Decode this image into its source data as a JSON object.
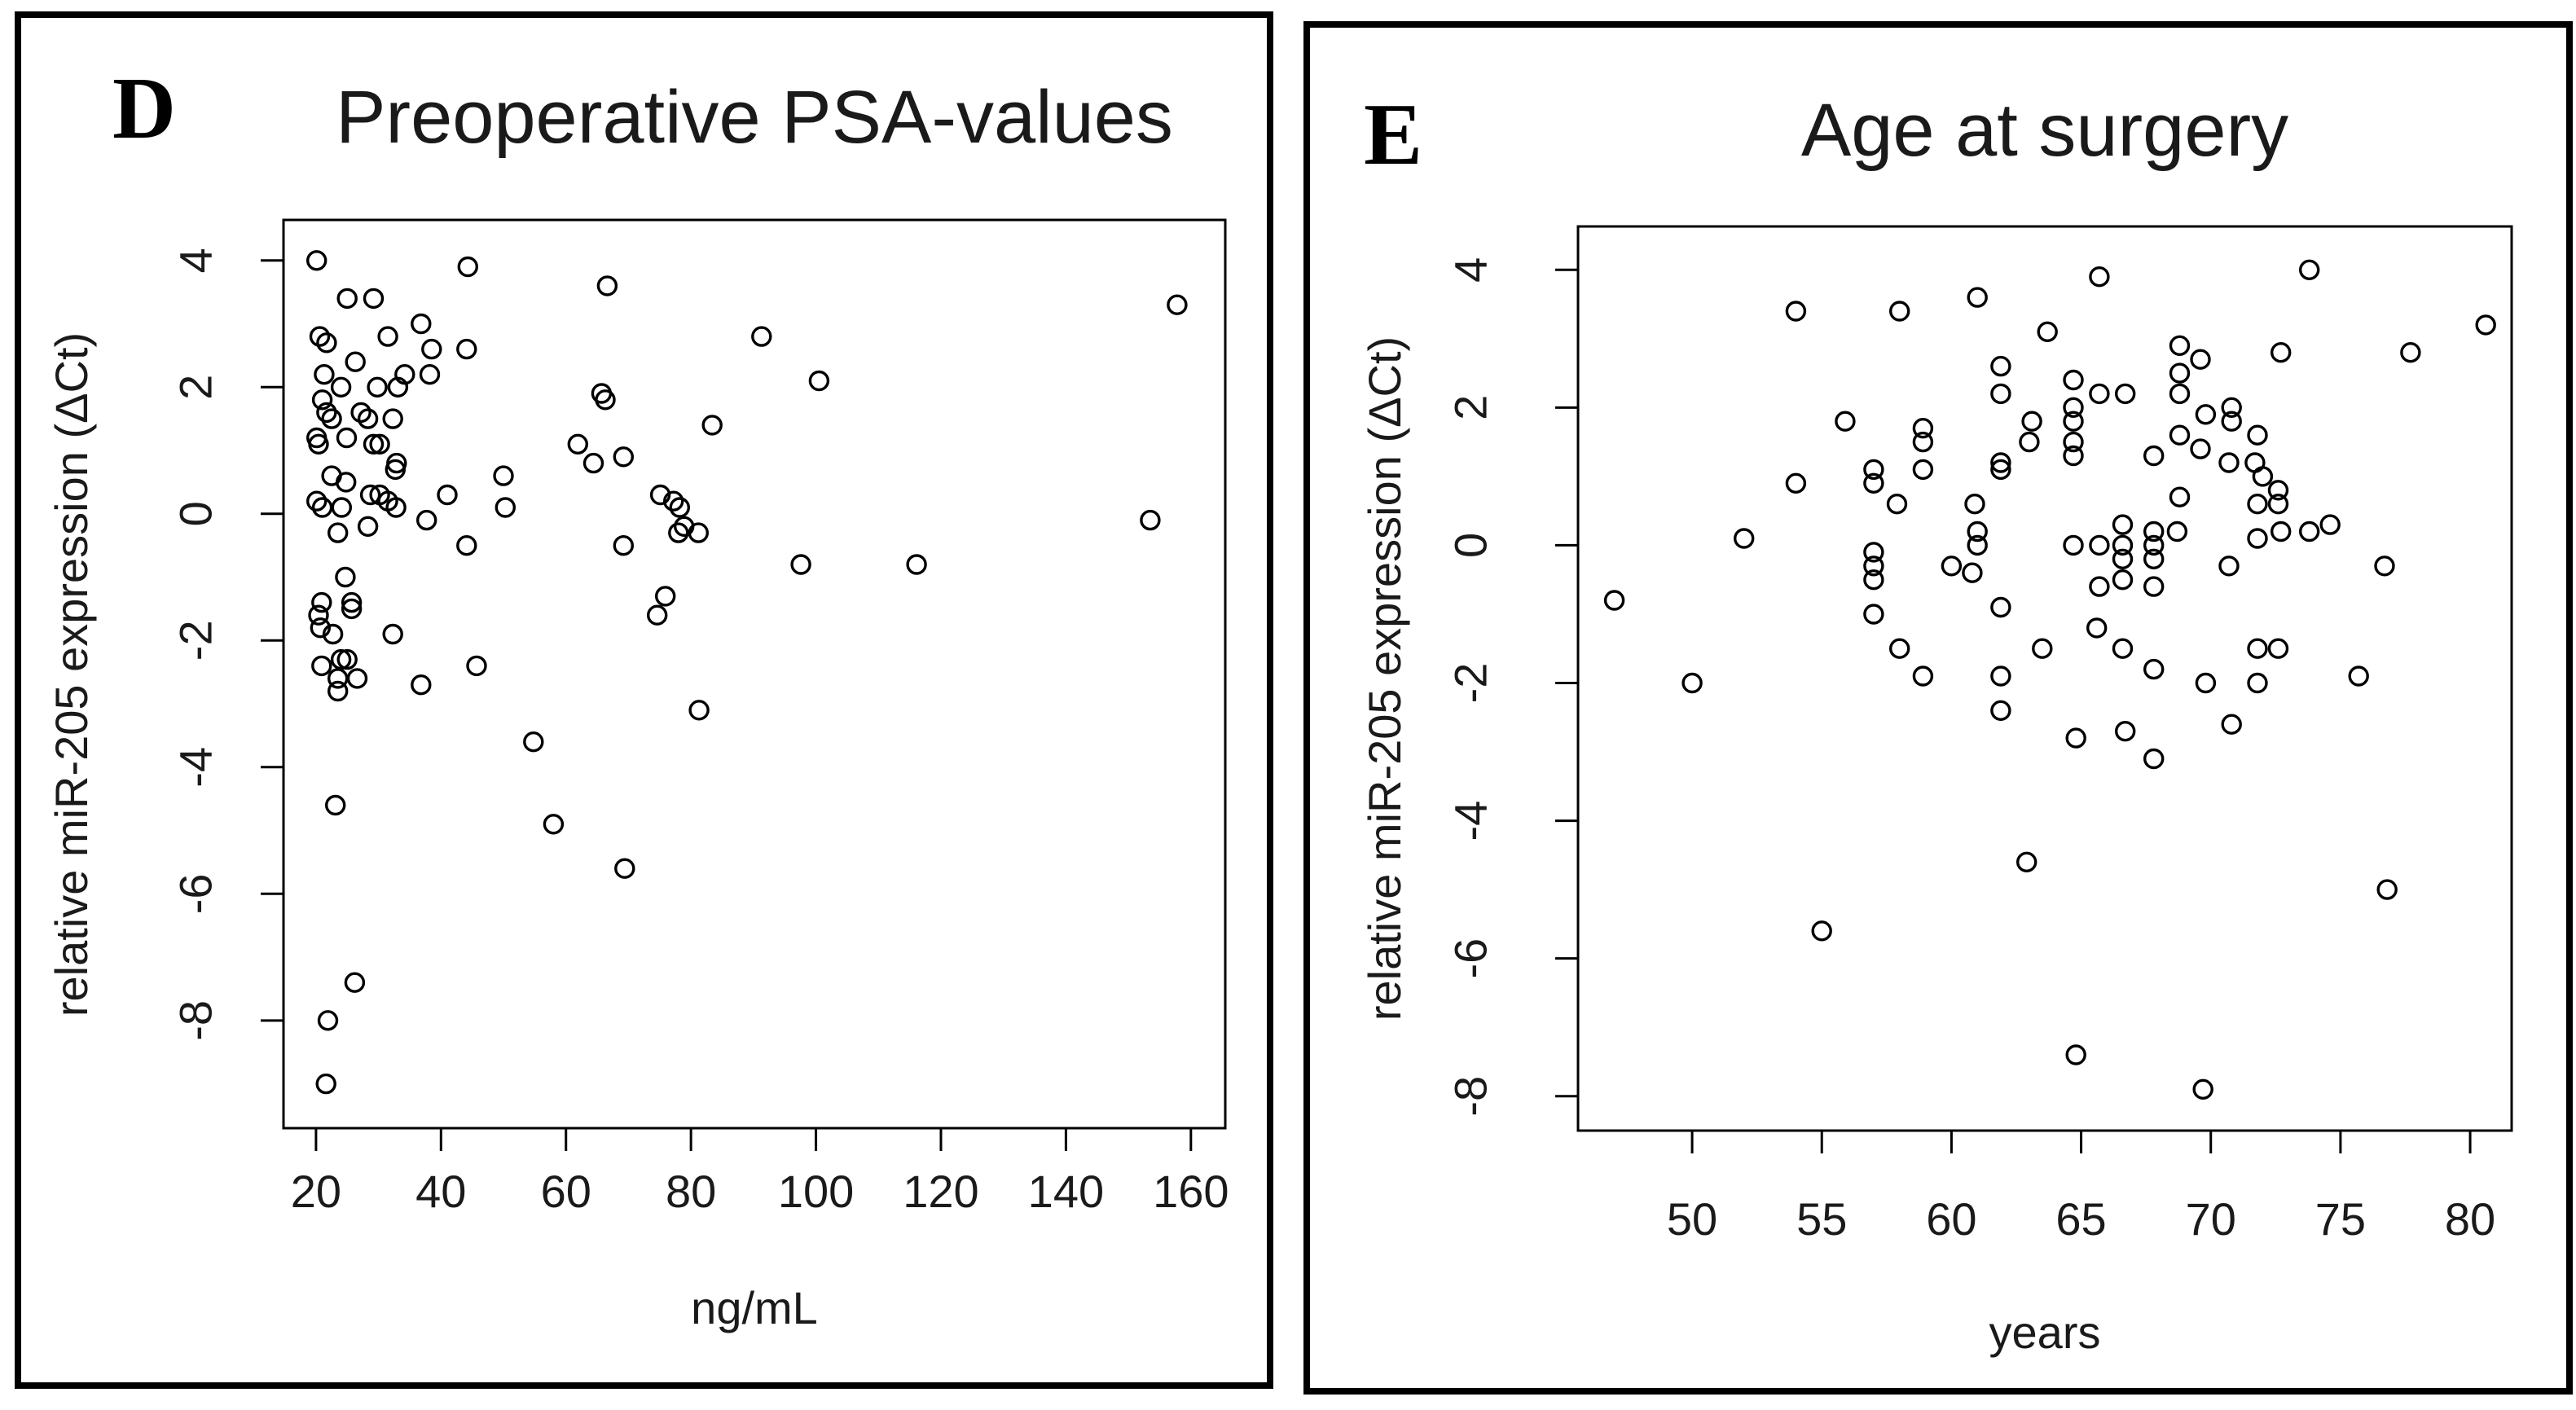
{
  "colors": {
    "foreground": "#000000",
    "background": "#ffffff"
  },
  "chart_data": [
    {
      "type": "scatter",
      "panel_letter": "D",
      "title": "Preoperative PSA-values",
      "xlabel": "ng/mL",
      "ylabel": "relative miR-205 expression (ΔCt)",
      "xlim": [
        14.8,
        165.5
      ],
      "ylim": [
        -9.7,
        4.64
      ],
      "xticks": [
        20,
        40,
        60,
        80,
        100,
        120,
        140,
        160
      ],
      "yticks": [
        4,
        2,
        0,
        -2,
        -4,
        -6,
        -8
      ],
      "grid": false,
      "legend": null,
      "marker": "open-circle",
      "points": [
        [
          20.1,
          4.0
        ],
        [
          44.3,
          3.9
        ],
        [
          66.6,
          3.6
        ],
        [
          25,
          3.4
        ],
        [
          29.2,
          3.4
        ],
        [
          36.8,
          3.0
        ],
        [
          31.5,
          2.8
        ],
        [
          20.6,
          2.8
        ],
        [
          21.7,
          2.7
        ],
        [
          91.3,
          2.8
        ],
        [
          38.5,
          2.6
        ],
        [
          44.1,
          2.6
        ],
        [
          26.3,
          2.4
        ],
        [
          21.3,
          2.2
        ],
        [
          24,
          2.0
        ],
        [
          34.2,
          2.2
        ],
        [
          33.1,
          2.0
        ],
        [
          29.8,
          2.0
        ],
        [
          38.2,
          2.2
        ],
        [
          65.7,
          1.9
        ],
        [
          66.3,
          1.8
        ],
        [
          21,
          1.8
        ],
        [
          21.7,
          1.6
        ],
        [
          22.5,
          1.5
        ],
        [
          27.2,
          1.6
        ],
        [
          28.3,
          1.5
        ],
        [
          32.3,
          1.5
        ],
        [
          20.1,
          1.2
        ],
        [
          20.4,
          1.1
        ],
        [
          24.9,
          1.2
        ],
        [
          29.2,
          1.1
        ],
        [
          30.2,
          1.1
        ],
        [
          32.9,
          0.8
        ],
        [
          32.7,
          0.7
        ],
        [
          61.9,
          1.1
        ],
        [
          64.4,
          0.8
        ],
        [
          69.2,
          0.9
        ],
        [
          83.4,
          1.4
        ],
        [
          22.5,
          0.6
        ],
        [
          24.8,
          0.5
        ],
        [
          20.1,
          0.2
        ],
        [
          21,
          0.1
        ],
        [
          24.1,
          0.1
        ],
        [
          28.7,
          0.3
        ],
        [
          30.2,
          0.3
        ],
        [
          31.5,
          0.2
        ],
        [
          32.8,
          0.1
        ],
        [
          28.3,
          -0.2
        ],
        [
          23.5,
          -0.3
        ],
        [
          37.7,
          -0.1
        ],
        [
          41,
          0.3
        ],
        [
          44.1,
          -0.5
        ],
        [
          50,
          0.6
        ],
        [
          50.3,
          0.1
        ],
        [
          75.1,
          0.3
        ],
        [
          77.2,
          0.2
        ],
        [
          78.2,
          0.1
        ],
        [
          78.9,
          -0.2
        ],
        [
          78,
          -0.3
        ],
        [
          81.2,
          -0.3
        ],
        [
          69.2,
          -0.5
        ],
        [
          24.7,
          -1.0
        ],
        [
          20.9,
          -1.4
        ],
        [
          25.7,
          -1.4
        ],
        [
          25.7,
          -1.5
        ],
        [
          20.4,
          -1.6
        ],
        [
          20.7,
          -1.8
        ],
        [
          22.7,
          -1.9
        ],
        [
          32.3,
          -1.9
        ],
        [
          75.9,
          -1.3
        ],
        [
          74.6,
          -1.6
        ],
        [
          20.9,
          -2.4
        ],
        [
          24,
          -2.3
        ],
        [
          25,
          -2.3
        ],
        [
          45.7,
          -2.4
        ],
        [
          23.5,
          -2.6
        ],
        [
          26.6,
          -2.6
        ],
        [
          36.8,
          -2.7
        ],
        [
          23.5,
          -2.8
        ],
        [
          81.3,
          -3.1
        ],
        [
          54.8,
          -3.6
        ],
        [
          23.1,
          -4.6
        ],
        [
          58,
          -4.9
        ],
        [
          69.4,
          -5.6
        ],
        [
          26.2,
          -7.4
        ],
        [
          21.9,
          -8.0
        ],
        [
          21.6,
          -9.0
        ],
        [
          157.8,
          3.3
        ],
        [
          100.5,
          2.1
        ],
        [
          153.5,
          -0.1
        ],
        [
          97.6,
          -0.8
        ],
        [
          116.1,
          -0.8
        ]
      ]
    },
    {
      "type": "scatter",
      "panel_letter": "E",
      "title": "Age at surgery",
      "xlabel": "years",
      "ylabel": "relative miR-205 expression (ΔCt)",
      "xlim": [
        45.6,
        81.6
      ],
      "ylim": [
        -8.5,
        4.63
      ],
      "xticks": [
        50,
        55,
        60,
        65,
        70,
        75,
        80
      ],
      "yticks": [
        4,
        2,
        0,
        -2,
        -4,
        -6,
        -8
      ],
      "grid": false,
      "legend": null,
      "marker": "open-circle",
      "points": [
        [
          54,
          3.4
        ],
        [
          58,
          3.4
        ],
        [
          61,
          3.6
        ],
        [
          63.7,
          3.1
        ],
        [
          61.9,
          2.6
        ],
        [
          61.9,
          2.2
        ],
        [
          55.9,
          1.8
        ],
        [
          58.9,
          1.7
        ],
        [
          58.9,
          1.5
        ],
        [
          58.9,
          1.1
        ],
        [
          57,
          1.1
        ],
        [
          57,
          0.9
        ],
        [
          54,
          0.9
        ],
        [
          57.9,
          0.6
        ],
        [
          60.9,
          0.6
        ],
        [
          63.1,
          1.8
        ],
        [
          63,
          1.5
        ],
        [
          61.9,
          1.2
        ],
        [
          61.9,
          1.1
        ],
        [
          61,
          0.2
        ],
        [
          61,
          0.0
        ],
        [
          60,
          -0.3
        ],
        [
          60.8,
          -0.4
        ],
        [
          52,
          0.1
        ],
        [
          47,
          -0.8
        ],
        [
          57,
          -0.1
        ],
        [
          57,
          -0.3
        ],
        [
          57,
          -0.5
        ],
        [
          61.9,
          -0.9
        ],
        [
          57,
          -1.0
        ],
        [
          58,
          -1.5
        ],
        [
          58.9,
          -1.9
        ],
        [
          50,
          -2.0
        ],
        [
          65.7,
          3.9
        ],
        [
          73.8,
          4.0
        ],
        [
          80.6,
          3.2
        ],
        [
          77.7,
          2.8
        ],
        [
          68.8,
          2.9
        ],
        [
          69.6,
          2.7
        ],
        [
          68.8,
          2.5
        ],
        [
          68.8,
          2.2
        ],
        [
          72.7,
          2.8
        ],
        [
          64.7,
          2.4
        ],
        [
          65.7,
          2.2
        ],
        [
          66.7,
          2.2
        ],
        [
          64.7,
          2.0
        ],
        [
          64.7,
          1.8
        ],
        [
          64.7,
          1.5
        ],
        [
          64.7,
          1.3
        ],
        [
          69.8,
          1.9
        ],
        [
          70.8,
          2.0
        ],
        [
          70.8,
          1.8
        ],
        [
          68.8,
          1.6
        ],
        [
          67.8,
          1.3
        ],
        [
          69.6,
          1.4
        ],
        [
          71.8,
          1.6
        ],
        [
          70.7,
          1.2
        ],
        [
          71.7,
          1.2
        ],
        [
          72,
          1.0
        ],
        [
          72.6,
          0.8
        ],
        [
          72.6,
          0.6
        ],
        [
          71.8,
          0.6
        ],
        [
          68.8,
          0.7
        ],
        [
          66.6,
          0.3
        ],
        [
          66.6,
          0.0
        ],
        [
          67.8,
          0.2
        ],
        [
          67.8,
          0.0
        ],
        [
          67.8,
          -0.2
        ],
        [
          64.7,
          0.0
        ],
        [
          65.7,
          0.0
        ],
        [
          68.7,
          0.2
        ],
        [
          71.8,
          0.1
        ],
        [
          72.7,
          0.2
        ],
        [
          73.8,
          0.2
        ],
        [
          74.6,
          0.3
        ],
        [
          70.7,
          -0.3
        ],
        [
          76.7,
          -0.3
        ],
        [
          66.6,
          -0.2
        ],
        [
          66.6,
          -0.5
        ],
        [
          65.7,
          -0.6
        ],
        [
          67.8,
          -0.6
        ],
        [
          65.6,
          -1.2
        ],
        [
          66.6,
          -1.5
        ],
        [
          63.5,
          -1.5
        ],
        [
          67.8,
          -1.8
        ],
        [
          71.8,
          -1.5
        ],
        [
          72.6,
          -1.5
        ],
        [
          61.9,
          -1.9
        ],
        [
          61.9,
          -2.4
        ],
        [
          62.9,
          -4.6
        ],
        [
          55,
          -5.6
        ],
        [
          64.8,
          -2.8
        ],
        [
          66.7,
          -2.7
        ],
        [
          67.8,
          -3.1
        ],
        [
          69.8,
          -2.0
        ],
        [
          70.8,
          -2.6
        ],
        [
          71.8,
          -2.0
        ],
        [
          75.7,
          -1.9
        ],
        [
          76.8,
          -5.0
        ],
        [
          64.8,
          -7.4
        ],
        [
          69.7,
          -7.9
        ]
      ]
    }
  ]
}
